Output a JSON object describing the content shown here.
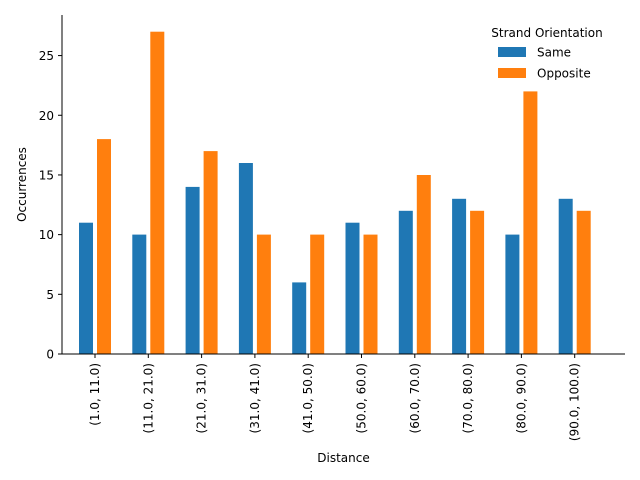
{
  "chart_data": {
    "type": "bar",
    "title": "",
    "xlabel": "Distance",
    "ylabel": "Occurrences",
    "ylim": [
      0,
      28.4
    ],
    "yticks": [
      0,
      5,
      10,
      15,
      20,
      25
    ],
    "grid": false,
    "legend": {
      "title": "Strand Orientation",
      "placement": "top-right"
    },
    "categories": [
      "(1.0, 11.0)",
      "(11.0, 21.0)",
      "(21.0, 31.0)",
      "(31.0, 41.0)",
      "(41.0, 50.0)",
      "(50.0, 60.0)",
      "(60.0, 70.0)",
      "(70.0, 80.0)",
      "(80.0, 90.0)",
      "(90.0, 100.0)"
    ],
    "series": [
      {
        "name": "Same",
        "color": "#1f77b4",
        "values": [
          11,
          10,
          14,
          16,
          6,
          11,
          12,
          13,
          10,
          13
        ]
      },
      {
        "name": "Opposite",
        "color": "#ff7f0e",
        "values": [
          18,
          27,
          17,
          10,
          10,
          10,
          15,
          12,
          22,
          12
        ]
      }
    ]
  }
}
